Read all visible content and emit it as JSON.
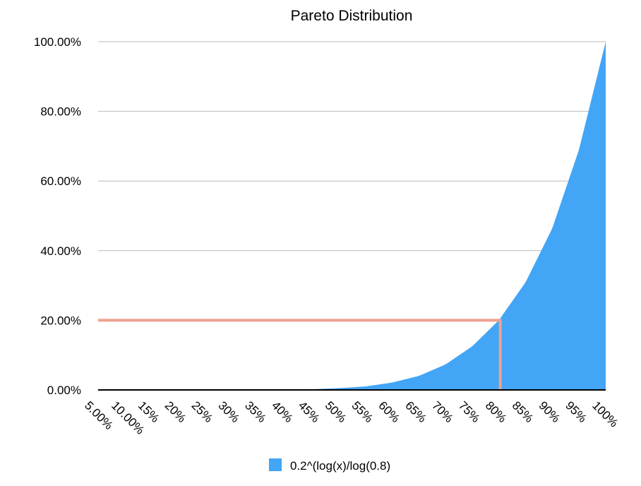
{
  "chart_data": {
    "type": "area",
    "title": "Pareto Distribution",
    "xlabel": "",
    "ylabel": "",
    "categories": [
      "5.00%",
      "10.00%",
      "15%",
      "20%",
      "25%",
      "30%",
      "35%",
      "40%",
      "45%",
      "50%",
      "55%",
      "60%",
      "65%",
      "70%",
      "75%",
      "80%",
      "85%",
      "90%",
      "95%",
      "100%"
    ],
    "y_tick_labels": [
      "0.00%",
      "20.00%",
      "40.00%",
      "60.00%",
      "80.00%",
      "100.00%"
    ],
    "ylim": [
      0,
      100
    ],
    "grid": true,
    "legend_position": "bottom",
    "series": [
      {
        "name": "0.2^(log(x)/log(0.8)",
        "color": "#42a5f5",
        "values": [
          0.0,
          0.0,
          0.0,
          0.0,
          0.0,
          0.0,
          0.0,
          0.1,
          0.2,
          0.5,
          1.0,
          2.1,
          4.0,
          7.3,
          12.5,
          20.0,
          30.9,
          46.4,
          69.0,
          100.0
        ]
      }
    ],
    "annotation": {
      "color": "#f0a090",
      "x_category": "80%",
      "y_value": 20
    }
  }
}
